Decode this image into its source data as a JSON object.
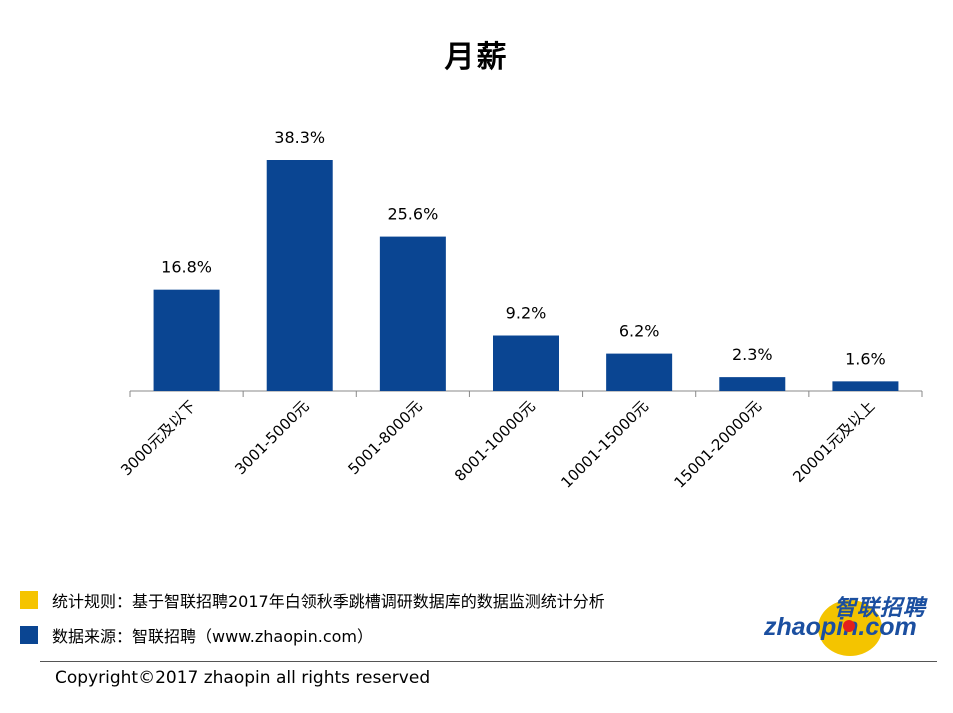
{
  "chart_data": {
    "type": "bar",
    "title": "月薪",
    "categories": [
      "3000元及以下",
      "3001-5000元",
      "5001-8000元",
      "8001-10000元",
      "10001-15000元",
      "15001-20000元",
      "20001元及以上"
    ],
    "values": [
      16.8,
      38.3,
      25.6,
      9.2,
      6.2,
      2.3,
      1.6
    ],
    "labels": [
      "16.8%",
      "38.3%",
      "25.6%",
      "9.2%",
      "6.2%",
      "2.3%",
      "1.6%"
    ],
    "unit": "%",
    "ylim": [
      0,
      45
    ],
    "bar_color": "#0a4592",
    "grid": false,
    "legend": "none"
  },
  "footer": {
    "rule_text": "统计规则：基于智联招聘2017年白领秋季跳槽调研数据库的数据监测统计分析",
    "rule_color": "#f5c400",
    "source_text": "数据来源：智联招聘（www.zhaopin.com）",
    "source_color": "#0a4592",
    "copyright": "Copyright©2017 zhaopin all rights reserved"
  },
  "logo": {
    "cn": "智联招聘",
    "en": "zhaopin.com"
  }
}
